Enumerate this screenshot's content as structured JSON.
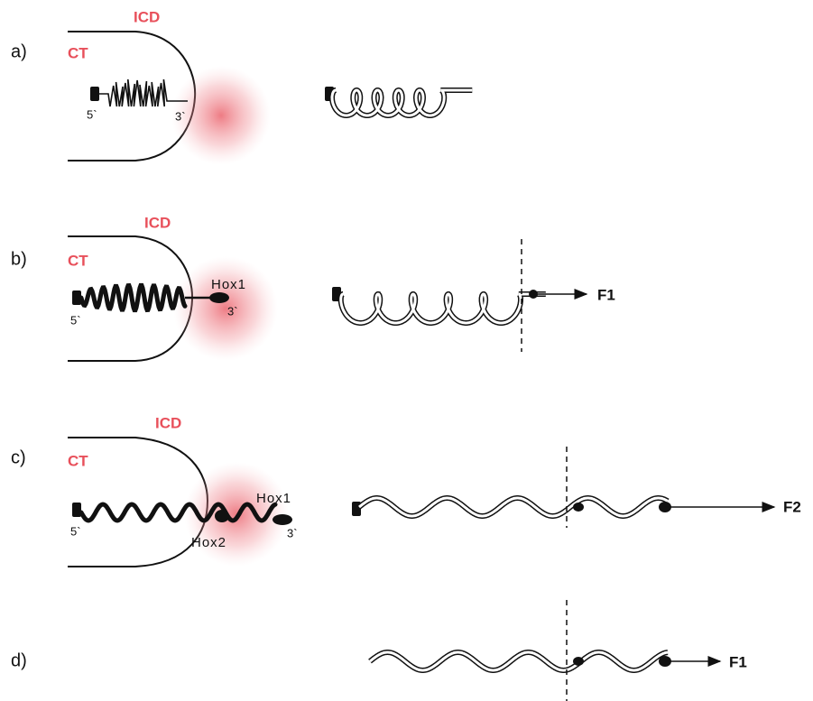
{
  "panels": [
    {
      "label": "a)",
      "icd": "ICD",
      "ct": "CT",
      "five_prime": "5`",
      "three_prime": "3`"
    },
    {
      "label": "b)",
      "icd": "ICD",
      "ct": "CT",
      "five_prime": "5`",
      "three_prime": "3`",
      "hox1": "Hox1",
      "output": "F1"
    },
    {
      "label": "c)",
      "icd": "ICD",
      "ct": "CT",
      "five_prime": "5`",
      "three_prime": "3`",
      "hox1": "Hox1",
      "hox2": "Hox2",
      "output": "F2"
    },
    {
      "label": "d)",
      "output": "F1"
    }
  ]
}
